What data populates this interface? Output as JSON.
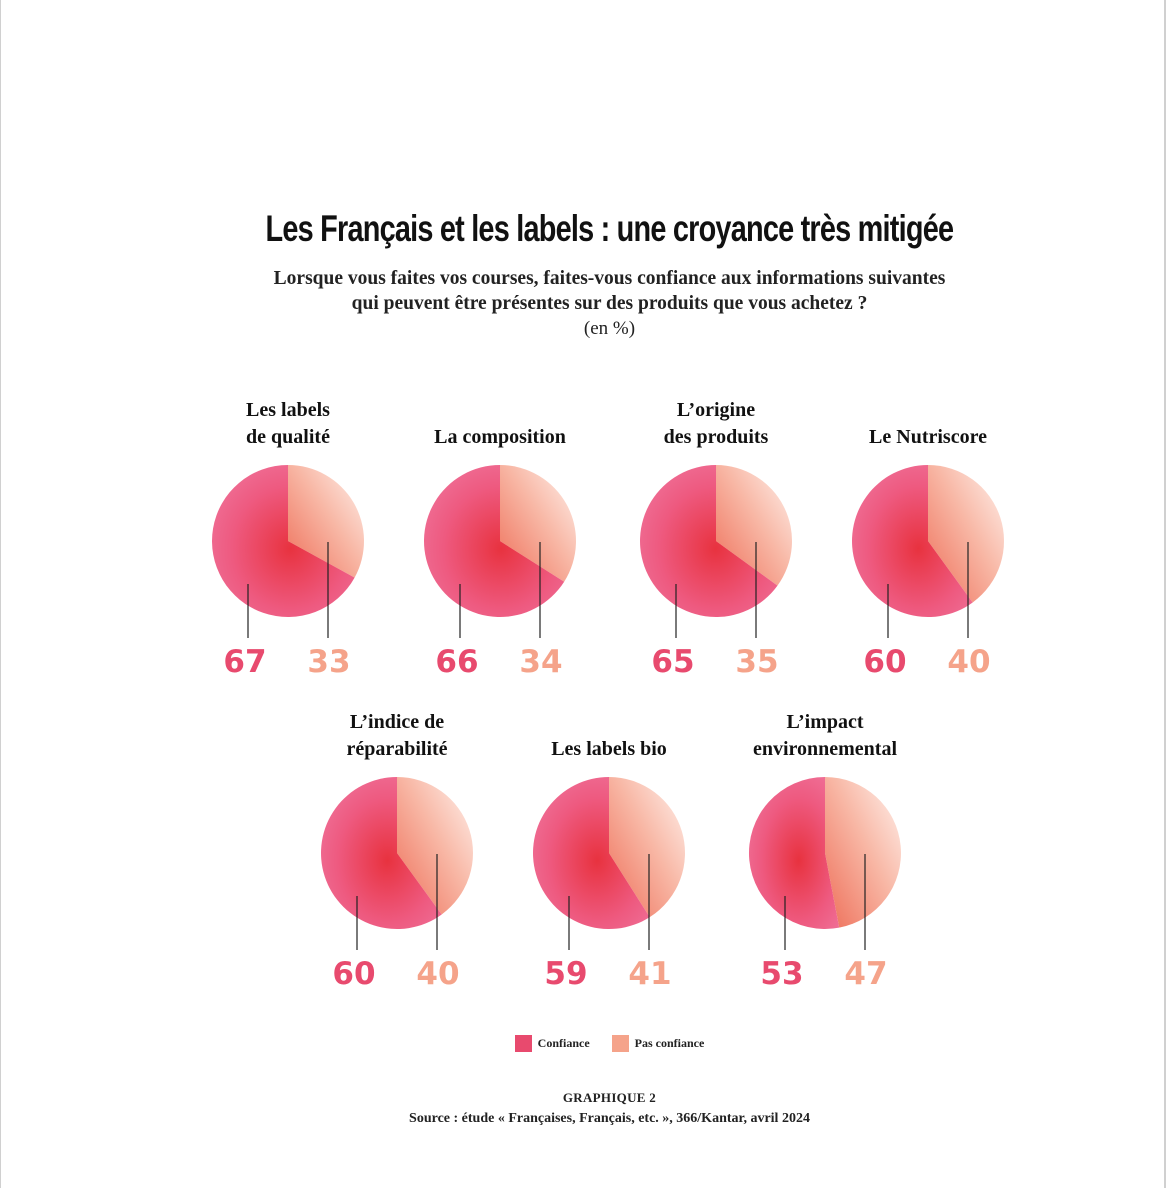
{
  "title": "Les Français et les labels : une croyance très mitigée",
  "subtitle_line1": "Lorsque vous faites vos courses, faites-vous confiance aux informations suivantes",
  "subtitle_line2": "qui peuvent être présentes sur des produits que vous achetez ?",
  "unit": "(en %)",
  "colors": {
    "confiance": "#e84a6e",
    "pas_confiance": "#f5a38a"
  },
  "legend": {
    "confiance": "Confiance",
    "pas_confiance": "Pas confiance"
  },
  "footer": {
    "label": "GRAPHIQUE 2",
    "source": "Source : étude « Françaises, Français, etc. », 366/Kantar, avril 2024"
  },
  "chart_data": {
    "type": "pie",
    "series_names": [
      "Confiance",
      "Pas confiance"
    ],
    "charts": [
      {
        "title_lines": [
          "Les labels",
          "de qualité"
        ],
        "confiance": 67,
        "pas_confiance": 33
      },
      {
        "title_lines": [
          "La composition"
        ],
        "confiance": 66,
        "pas_confiance": 34
      },
      {
        "title_lines": [
          "L’origine",
          "des produits"
        ],
        "confiance": 65,
        "pas_confiance": 35
      },
      {
        "title_lines": [
          "Le Nutriscore"
        ],
        "confiance": 60,
        "pas_confiance": 40
      },
      {
        "title_lines": [
          "L’indice de",
          "réparabilité"
        ],
        "confiance": 60,
        "pas_confiance": 40
      },
      {
        "title_lines": [
          "Les labels bio"
        ],
        "confiance": 59,
        "pas_confiance": 41
      },
      {
        "title_lines": [
          "L’impact",
          "environnemental"
        ],
        "confiance": 53,
        "pas_confiance": 47
      }
    ]
  }
}
